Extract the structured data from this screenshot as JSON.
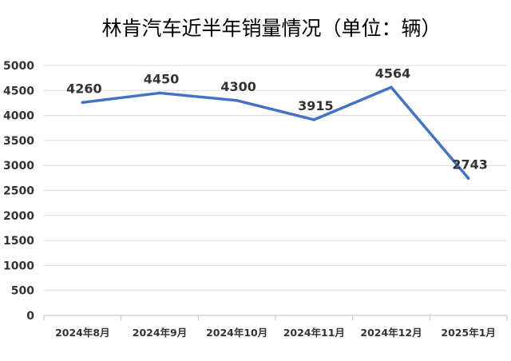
{
  "chart_data": {
    "type": "line",
    "title": "林肯汽车近半年销量情况（单位：辆）",
    "categories": [
      "2024年8月",
      "2024年9月",
      "2024年10月",
      "2024年11月",
      "2024年12月",
      "2025年1月"
    ],
    "series": [
      {
        "values": [
          4260,
          4450,
          4300,
          3915,
          4564,
          2743
        ],
        "color": "#4472C4"
      }
    ],
    "data_labels": [
      "4260",
      "4450",
      "4300",
      "3915",
      "4564",
      "2743"
    ],
    "y_ticks": [
      "0",
      "500",
      "1000",
      "1500",
      "2000",
      "2500",
      "3000",
      "3500",
      "4000",
      "4500",
      "5000"
    ],
    "ylim": [
      0,
      5000
    ],
    "grid": true,
    "legend": "none",
    "xlabel": "",
    "ylabel": ""
  }
}
